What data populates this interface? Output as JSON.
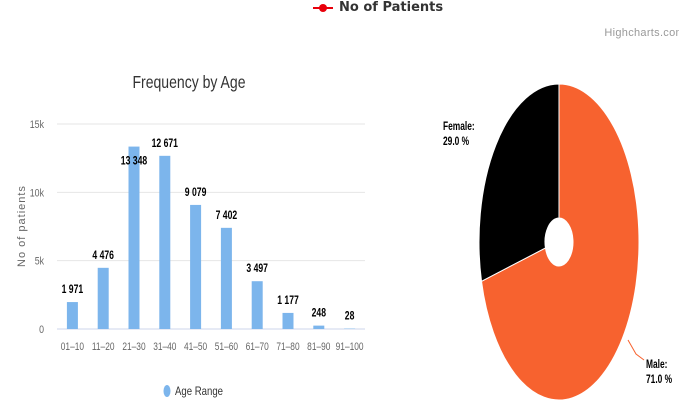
{
  "header": {
    "legend_label": "No of Patients",
    "credits": "Highcharts.com"
  },
  "colors": {
    "bar": "#7cb5ec",
    "pie_female": "#000000",
    "pie_male": "#f7622f",
    "legend_line": "#e8000b"
  },
  "chart_data": [
    {
      "type": "bar",
      "title": "Frequency by Age",
      "xlabel": "",
      "ylabel": "No of patients",
      "categories": [
        "01-10",
        "11-20",
        "21-30",
        "31-40",
        "41-50",
        "51-60",
        "61-70",
        "71-80",
        "81-90",
        "91-100"
      ],
      "values": [
        1971,
        4476,
        13348,
        12671,
        9079,
        7402,
        3497,
        1177,
        248,
        28
      ],
      "value_labels": [
        "1 971",
        "4 476",
        "13 348",
        "12 671",
        "9 079",
        "7 402",
        "3 497",
        "1 177",
        "248",
        "28"
      ],
      "yticks": [
        0,
        5000,
        10000,
        15000
      ],
      "ytick_labels": [
        "0",
        "5k",
        "10k",
        "15k"
      ],
      "ylim": [
        0,
        15000
      ],
      "legend": "Age Range",
      "grid": true
    },
    {
      "type": "pie",
      "series_name": "No of Patients",
      "slices": [
        {
          "name": "Female",
          "value": 29.0,
          "label": "Female:",
          "pct_label": "29.0 %"
        },
        {
          "name": "Male",
          "value": 71.0,
          "label": "Male:",
          "pct_label": "71.0 %"
        }
      ]
    }
  ]
}
